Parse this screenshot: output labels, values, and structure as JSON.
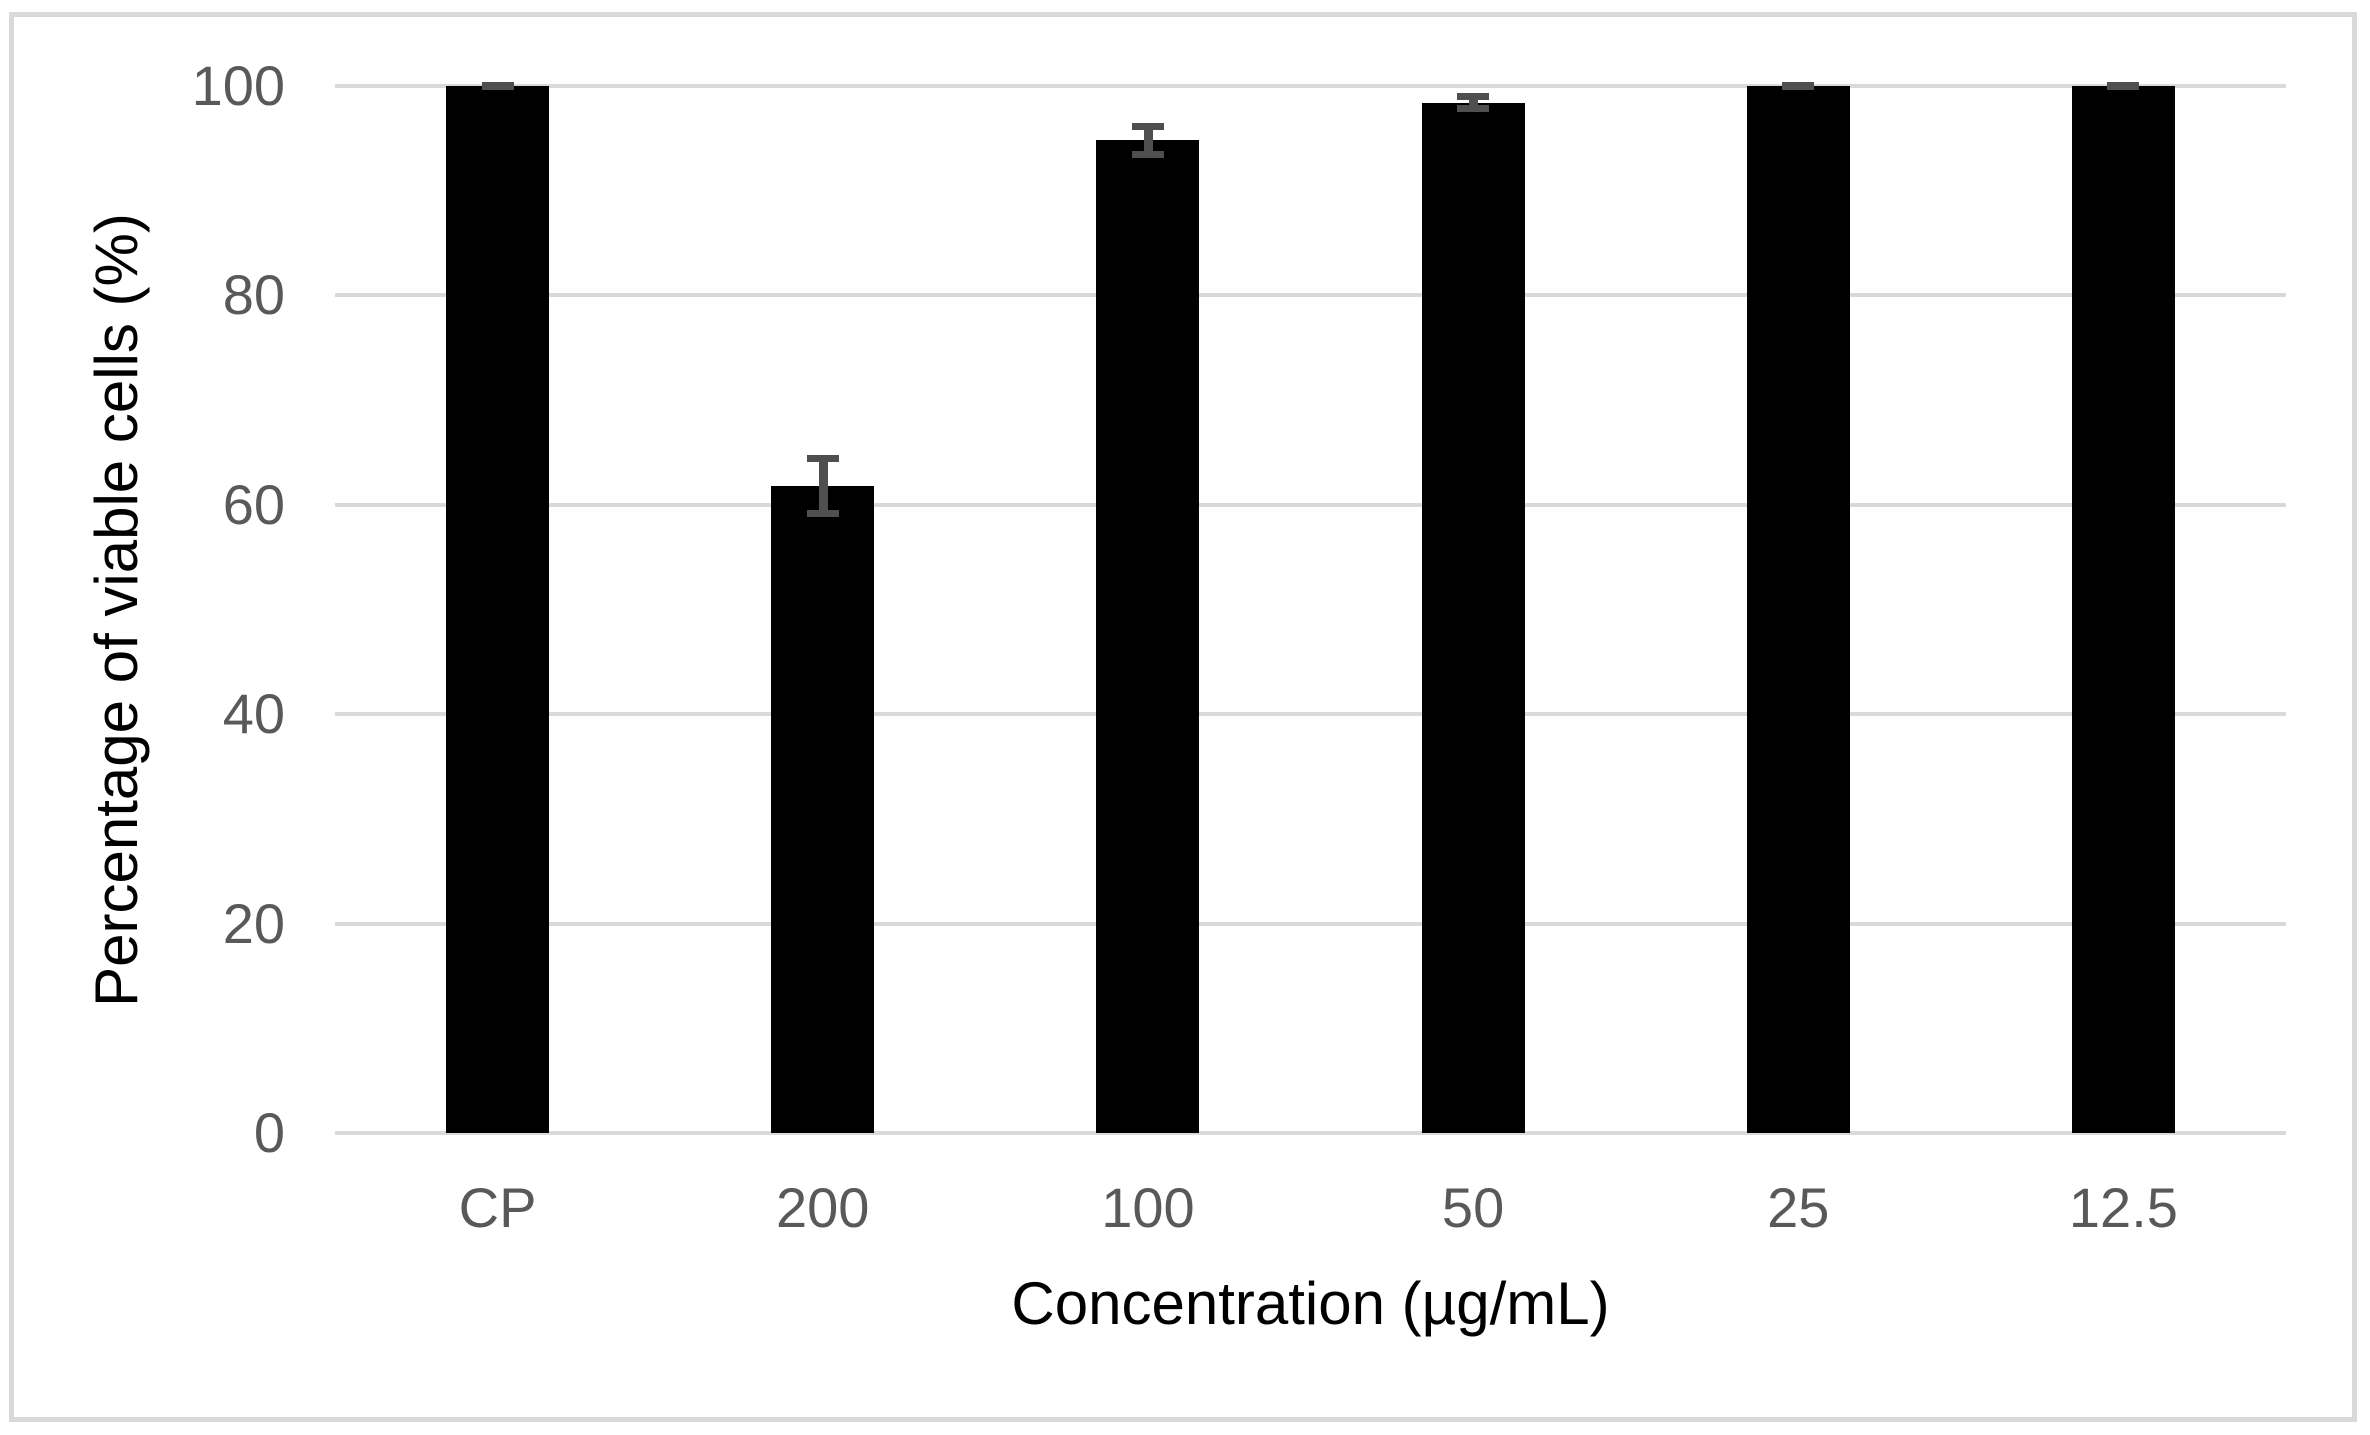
{
  "chart_data": {
    "type": "bar",
    "title": "",
    "categories": [
      "CP",
      "200",
      "100",
      "50",
      "25",
      "12.5"
    ],
    "values": [
      100,
      61.8,
      94.8,
      98.4,
      100,
      100
    ],
    "errors": [
      0.4,
      3.0,
      1.7,
      0.9,
      0.4,
      0.4
    ],
    "xlabel": "Concentration (µg/mL)",
    "ylabel": "Percentage of viable cells (%)",
    "yticks": [
      0,
      20,
      40,
      60,
      80,
      100
    ],
    "ylim": [
      0,
      100
    ],
    "grid": true,
    "legend": "none",
    "bar_color": "#000000",
    "error_color": "#4f4f4f",
    "grid_color": "#d9d9d9",
    "tick_color": "#595959",
    "axis_title_color": "#000000",
    "frame_color": "#d9d9d9",
    "background_color": "#ffffff"
  }
}
